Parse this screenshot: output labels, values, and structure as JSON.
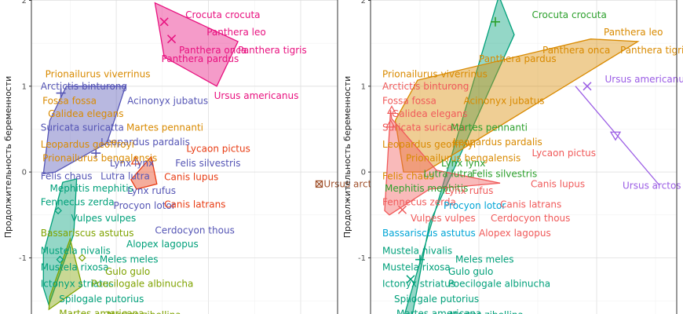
{
  "colors": {
    "pink": "#e8117f",
    "orange": "#d98a00",
    "slate": "#5555b5",
    "red": "#e83b12",
    "green": "#00a07a",
    "olive": "#7fa300",
    "darkgreen": "#2ca02c",
    "purple": "#9b5de5",
    "brown": "#a0522d",
    "cyan": "#00a5d6",
    "salmon": "#f05a5a"
  },
  "chart_data": [
    {
      "type": "scatter",
      "panel": "left",
      "ylabel": "Продолжительность беременности",
      "ylim": [
        -1.7,
        2.05
      ],
      "yticks": [
        2,
        1,
        0,
        -1
      ],
      "labels": [
        {
          "text": "Crocuta crocuta",
          "x": 0.75,
          "y": 1.83,
          "color": "pink"
        },
        {
          "text": "Panthera leo",
          "x": 0.98,
          "y": 1.63,
          "color": "pink"
        },
        {
          "text": "Panthera onca",
          "x": 0.68,
          "y": 1.42,
          "color": "pink"
        },
        {
          "text": "Panthera tigris",
          "x": 1.32,
          "y": 1.42,
          "color": "pink"
        },
        {
          "text": "Panthera pardus",
          "x": 0.49,
          "y": 1.32,
          "color": "pink"
        },
        {
          "text": "Ursus americanus",
          "x": 1.06,
          "y": 0.89,
          "color": "pink"
        },
        {
          "text": "Prionailurus viverrinus",
          "x": -0.77,
          "y": 1.14,
          "color": "orange"
        },
        {
          "text": "Arctictis binturong",
          "x": -0.82,
          "y": 1.0,
          "color": "slate"
        },
        {
          "text": "Fossa fossa",
          "x": -0.8,
          "y": 0.83,
          "color": "orange"
        },
        {
          "text": "Acinonyx jubatus",
          "x": 0.12,
          "y": 0.83,
          "color": "slate"
        },
        {
          "text": "Galidea elegans",
          "x": -0.74,
          "y": 0.68,
          "color": "orange"
        },
        {
          "text": "Suricata suricatta",
          "x": -0.82,
          "y": 0.52,
          "color": "slate"
        },
        {
          "text": "Martes pennanti",
          "x": 0.11,
          "y": 0.52,
          "color": "orange"
        },
        {
          "text": "Leopardus pardalis",
          "x": -0.17,
          "y": 0.35,
          "color": "slate"
        },
        {
          "text": "Leopardus geoffroyi",
          "x": -0.82,
          "y": 0.32,
          "color": "orange"
        },
        {
          "text": "Lycaon pictus",
          "x": 0.76,
          "y": 0.27,
          "color": "red"
        },
        {
          "text": "Prionailurus bengalensis",
          "x": -0.8,
          "y": 0.16,
          "color": "orange"
        },
        {
          "text": "Lynx lynx",
          "x": -0.07,
          "y": 0.1,
          "color": "slate"
        },
        {
          "text": "Felis silvestris",
          "x": 0.64,
          "y": 0.1,
          "color": "slate"
        },
        {
          "text": "Felis chaus",
          "x": -0.82,
          "y": -0.05,
          "color": "slate"
        },
        {
          "text": "Lutra lutra",
          "x": -0.17,
          "y": -0.05,
          "color": "slate"
        },
        {
          "text": "Canis lupus",
          "x": 0.52,
          "y": -0.06,
          "color": "red"
        },
        {
          "text": "Mephitis mephitis",
          "x": -0.72,
          "y": -0.19,
          "color": "green"
        },
        {
          "text": "Ursus arctos",
          "x": 2.25,
          "y": -0.14,
          "color": "brown"
        },
        {
          "text": "Lynx rufus",
          "x": 0.12,
          "y": -0.22,
          "color": "slate"
        },
        {
          "text": "Fennecus zerda",
          "x": -0.82,
          "y": -0.35,
          "color": "green"
        },
        {
          "text": "Procyon lotor",
          "x": -0.03,
          "y": -0.39,
          "color": "slate"
        },
        {
          "text": "Canis latrans",
          "x": 0.52,
          "y": -0.38,
          "color": "red"
        },
        {
          "text": "Vulpes vulpes",
          "x": -0.49,
          "y": -0.54,
          "color": "green"
        },
        {
          "text": "Cerdocyon thous",
          "x": 0.42,
          "y": -0.68,
          "color": "slate"
        },
        {
          "text": "Bassariscus astutus",
          "x": -0.82,
          "y": -0.71,
          "color": "olive"
        },
        {
          "text": "Alopex lagopus",
          "x": 0.11,
          "y": -0.84,
          "color": "green"
        },
        {
          "text": "Mustela nivalis",
          "x": -0.82,
          "y": -0.92,
          "color": "green"
        },
        {
          "text": "Meles meles",
          "x": -0.18,
          "y": -1.02,
          "color": "green"
        },
        {
          "text": "Mustela rixosa",
          "x": -0.82,
          "y": -1.11,
          "color": "green"
        },
        {
          "text": "Gulo gulo",
          "x": -0.12,
          "y": -1.16,
          "color": "olive"
        },
        {
          "text": "Ictonyx striatus",
          "x": -0.82,
          "y": -1.3,
          "color": "green"
        },
        {
          "text": "Poecilogale albinucha",
          "x": -0.27,
          "y": -1.3,
          "color": "olive"
        },
        {
          "text": "Spilogale putorius",
          "x": -0.62,
          "y": -1.48,
          "color": "green"
        },
        {
          "text": "Martes americana",
          "x": -0.62,
          "y": -1.65,
          "color": "olive"
        },
        {
          "text": "Martes zibellina",
          "x": -0.1,
          "y": -1.67,
          "color": "olive"
        }
      ],
      "hulls": [
        {
          "color": "pink",
          "points": [
            [
              0.42,
              1.97
            ],
            [
              1.32,
              1.52
            ],
            [
              1.09,
              1.0
            ],
            [
              0.52,
              1.34
            ]
          ]
        },
        {
          "color": "slate",
          "points": [
            [
              -0.54,
              1.0
            ],
            [
              0.1,
              1.0
            ],
            [
              -0.1,
              0.34
            ],
            [
              -0.66,
              0.0
            ],
            [
              -0.79,
              -0.02
            ],
            [
              -0.72,
              0.6
            ]
          ]
        },
        {
          "color": "red",
          "points": [
            [
              0.38,
              0.18
            ],
            [
              0.44,
              -0.14
            ],
            [
              0.22,
              -0.2
            ],
            [
              0.16,
              -0.09
            ]
          ]
        },
        {
          "color": "green",
          "points": [
            [
              -0.58,
              -0.12
            ],
            [
              -0.43,
              -0.08
            ],
            [
              -0.46,
              -0.72
            ],
            [
              -0.73,
              -1.55
            ],
            [
              -0.79,
              -1.35
            ],
            [
              -0.79,
              -0.95
            ]
          ]
        },
        {
          "color": "olive",
          "points": [
            [
              -0.5,
              -0.78
            ],
            [
              -0.37,
              -1.33
            ],
            [
              -0.73,
              -1.6
            ],
            [
              -0.72,
              -1.45
            ]
          ]
        }
      ],
      "markers": [
        {
          "x": 0.6,
          "y": 1.55,
          "shape": "x",
          "color": "pink"
        },
        {
          "x": 0.52,
          "y": 1.75,
          "shape": "x",
          "color": "pink"
        },
        {
          "x": 2.2,
          "y": -0.14,
          "shape": "boxx",
          "color": "brown"
        },
        {
          "x": -0.6,
          "y": 0.92,
          "shape": "plus",
          "color": "slate"
        },
        {
          "x": -0.22,
          "y": 0.22,
          "shape": "plus",
          "color": "slate"
        },
        {
          "x": -0.63,
          "y": -0.45,
          "shape": "diamond",
          "color": "green"
        },
        {
          "x": -0.61,
          "y": -1.02,
          "shape": "diamond",
          "color": "green"
        },
        {
          "x": -0.37,
          "y": -1.0,
          "shape": "diamond",
          "color": "olive"
        },
        {
          "x": 0.21,
          "y": 0.13,
          "shape": "triangle",
          "color": "red"
        }
      ]
    },
    {
      "type": "scatter",
      "panel": "right",
      "ylabel": "Продолжительность беременности",
      "ylim": [
        -1.7,
        2.05
      ],
      "yticks": [
        2,
        1,
        0,
        -1
      ],
      "labels": [
        {
          "text": "Crocuta crocuta",
          "x": 0.45,
          "y": 1.83,
          "color": "darkgreen"
        },
        {
          "text": "Panthera leo",
          "x": 1.06,
          "y": 1.63,
          "color": "orange"
        },
        {
          "text": "Panthera onca",
          "x": 0.54,
          "y": 1.42,
          "color": "orange"
        },
        {
          "text": "Panthera tigris",
          "x": 1.2,
          "y": 1.42,
          "color": "orange"
        },
        {
          "text": "Panthera pardus",
          "x": 0.0,
          "y": 1.32,
          "color": "orange"
        },
        {
          "text": "Prionailurus viverrinus",
          "x": -0.82,
          "y": 1.14,
          "color": "orange"
        },
        {
          "text": "Ursus americanus",
          "x": 1.07,
          "y": 1.08,
          "color": "purple"
        },
        {
          "text": "Arctictis binturong",
          "x": -0.82,
          "y": 1.0,
          "color": "salmon"
        },
        {
          "text": "Fossa fossa",
          "x": -0.82,
          "y": 0.83,
          "color": "salmon"
        },
        {
          "text": "Acinonyx jubatus",
          "x": -0.13,
          "y": 0.83,
          "color": "orange"
        },
        {
          "text": "Galidea elegans",
          "x": -0.74,
          "y": 0.68,
          "color": "salmon"
        },
        {
          "text": "Suricata suricatta",
          "x": -0.82,
          "y": 0.52,
          "color": "salmon"
        },
        {
          "text": "Martes pennanti",
          "x": -0.24,
          "y": 0.52,
          "color": "darkgreen"
        },
        {
          "text": "Leopardus pardalis",
          "x": -0.22,
          "y": 0.35,
          "color": "orange"
        },
        {
          "text": "Leopardus geoffroyi",
          "x": -0.82,
          "y": 0.32,
          "color": "orange"
        },
        {
          "text": "Lycaon pictus",
          "x": 0.45,
          "y": 0.22,
          "color": "salmon"
        },
        {
          "text": "Prionailurus bengalensis",
          "x": -0.62,
          "y": 0.16,
          "color": "orange"
        },
        {
          "text": "Lynx lynx",
          "x": -0.32,
          "y": 0.1,
          "color": "darkgreen"
        },
        {
          "text": "Felis chaus",
          "x": -0.82,
          "y": -0.05,
          "color": "orange"
        },
        {
          "text": "Lutra lutra",
          "x": -0.47,
          "y": -0.02,
          "color": "darkgreen"
        },
        {
          "text": "Felis silvestris",
          "x": -0.06,
          "y": -0.02,
          "color": "darkgreen"
        },
        {
          "text": "Mephitis mephitis",
          "x": -0.8,
          "y": -0.19,
          "color": "darkgreen"
        },
        {
          "text": "Canis lupus",
          "x": 0.44,
          "y": -0.14,
          "color": "salmon"
        },
        {
          "text": "Ursus arctos",
          "x": 1.22,
          "y": -0.16,
          "color": "purple"
        },
        {
          "text": "Lynx rufus",
          "x": -0.29,
          "y": -0.22,
          "color": "salmon"
        },
        {
          "text": "Fennecus zerda",
          "x": -0.82,
          "y": -0.35,
          "color": "salmon"
        },
        {
          "text": "Procyon lotor",
          "x": -0.3,
          "y": -0.39,
          "color": "cyan"
        },
        {
          "text": "Canis latrans",
          "x": 0.18,
          "y": -0.38,
          "color": "salmon"
        },
        {
          "text": "Vulpes vulpes",
          "x": -0.58,
          "y": -0.54,
          "color": "salmon"
        },
        {
          "text": "Cerdocyon thous",
          "x": 0.1,
          "y": -0.54,
          "color": "salmon"
        },
        {
          "text": "Bassariscus astutus",
          "x": -0.82,
          "y": -0.71,
          "color": "cyan"
        },
        {
          "text": "Alopex lagopus",
          "x": 0.0,
          "y": -0.71,
          "color": "salmon"
        },
        {
          "text": "Mustela nivalis",
          "x": -0.82,
          "y": -0.92,
          "color": "green"
        },
        {
          "text": "Meles meles",
          "x": -0.2,
          "y": -1.02,
          "color": "green"
        },
        {
          "text": "Mustela rixosa",
          "x": -0.82,
          "y": -1.11,
          "color": "green"
        },
        {
          "text": "Gulo gulo",
          "x": -0.26,
          "y": -1.16,
          "color": "green"
        },
        {
          "text": "Ictonyx striatus",
          "x": -0.82,
          "y": -1.3,
          "color": "green"
        },
        {
          "text": "Poecilogale albinucha",
          "x": -0.26,
          "y": -1.3,
          "color": "green"
        },
        {
          "text": "Spilogale putorius",
          "x": -0.72,
          "y": -1.48,
          "color": "green"
        },
        {
          "text": "Martes americana",
          "x": -0.7,
          "y": -1.65,
          "color": "green"
        },
        {
          "text": "Martes zibellina",
          "x": -0.25,
          "y": -1.67,
          "color": "green"
        }
      ],
      "hulls": [
        {
          "color": "green",
          "points": [
            [
              0.17,
              2.05
            ],
            [
              0.3,
              1.6
            ],
            [
              -0.42,
              -0.6
            ],
            [
              -0.57,
              -1.7
            ],
            [
              -0.64,
              -1.7
            ]
          ]
        },
        {
          "color": "orange",
          "points": [
            [
              -0.52,
              1.07
            ],
            [
              0.95,
              1.55
            ],
            [
              1.35,
              1.52
            ],
            [
              -0.46,
              0.0
            ],
            [
              -0.64,
              0.0
            ],
            [
              -0.71,
              0.6
            ]
          ]
        },
        {
          "color": "salmon",
          "points": [
            [
              -0.75,
              0.72
            ],
            [
              -0.74,
              0.62
            ],
            [
              -0.36,
              0.02
            ],
            [
              0.18,
              -0.13
            ],
            [
              -0.42,
              -0.2
            ],
            [
              -0.76,
              -0.5
            ],
            [
              -0.8,
              -0.45
            ]
          ]
        },
        {
          "color": "purple",
          "points": [
            [
              0.82,
              1.0
            ],
            [
              1.53,
              -0.15
            ]
          ]
        }
      ],
      "markers": [
        {
          "x": 0.14,
          "y": 1.75,
          "shape": "plus",
          "color": "darkgreen"
        },
        {
          "x": 0.92,
          "y": 1.0,
          "shape": "x",
          "color": "purple"
        },
        {
          "x": 1.16,
          "y": 0.42,
          "shape": "triangle-down",
          "color": "purple"
        },
        {
          "x": -0.74,
          "y": 0.72,
          "shape": "triangle",
          "color": "salmon"
        },
        {
          "x": -0.75,
          "y": 0.56,
          "shape": "triangle",
          "color": "salmon"
        },
        {
          "x": -0.65,
          "y": -0.44,
          "shape": "x",
          "color": "salmon"
        },
        {
          "x": -0.5,
          "y": -1.02,
          "shape": "plus",
          "color": "green"
        },
        {
          "x": -0.58,
          "y": -1.25,
          "shape": "x",
          "color": "green"
        }
      ]
    }
  ]
}
